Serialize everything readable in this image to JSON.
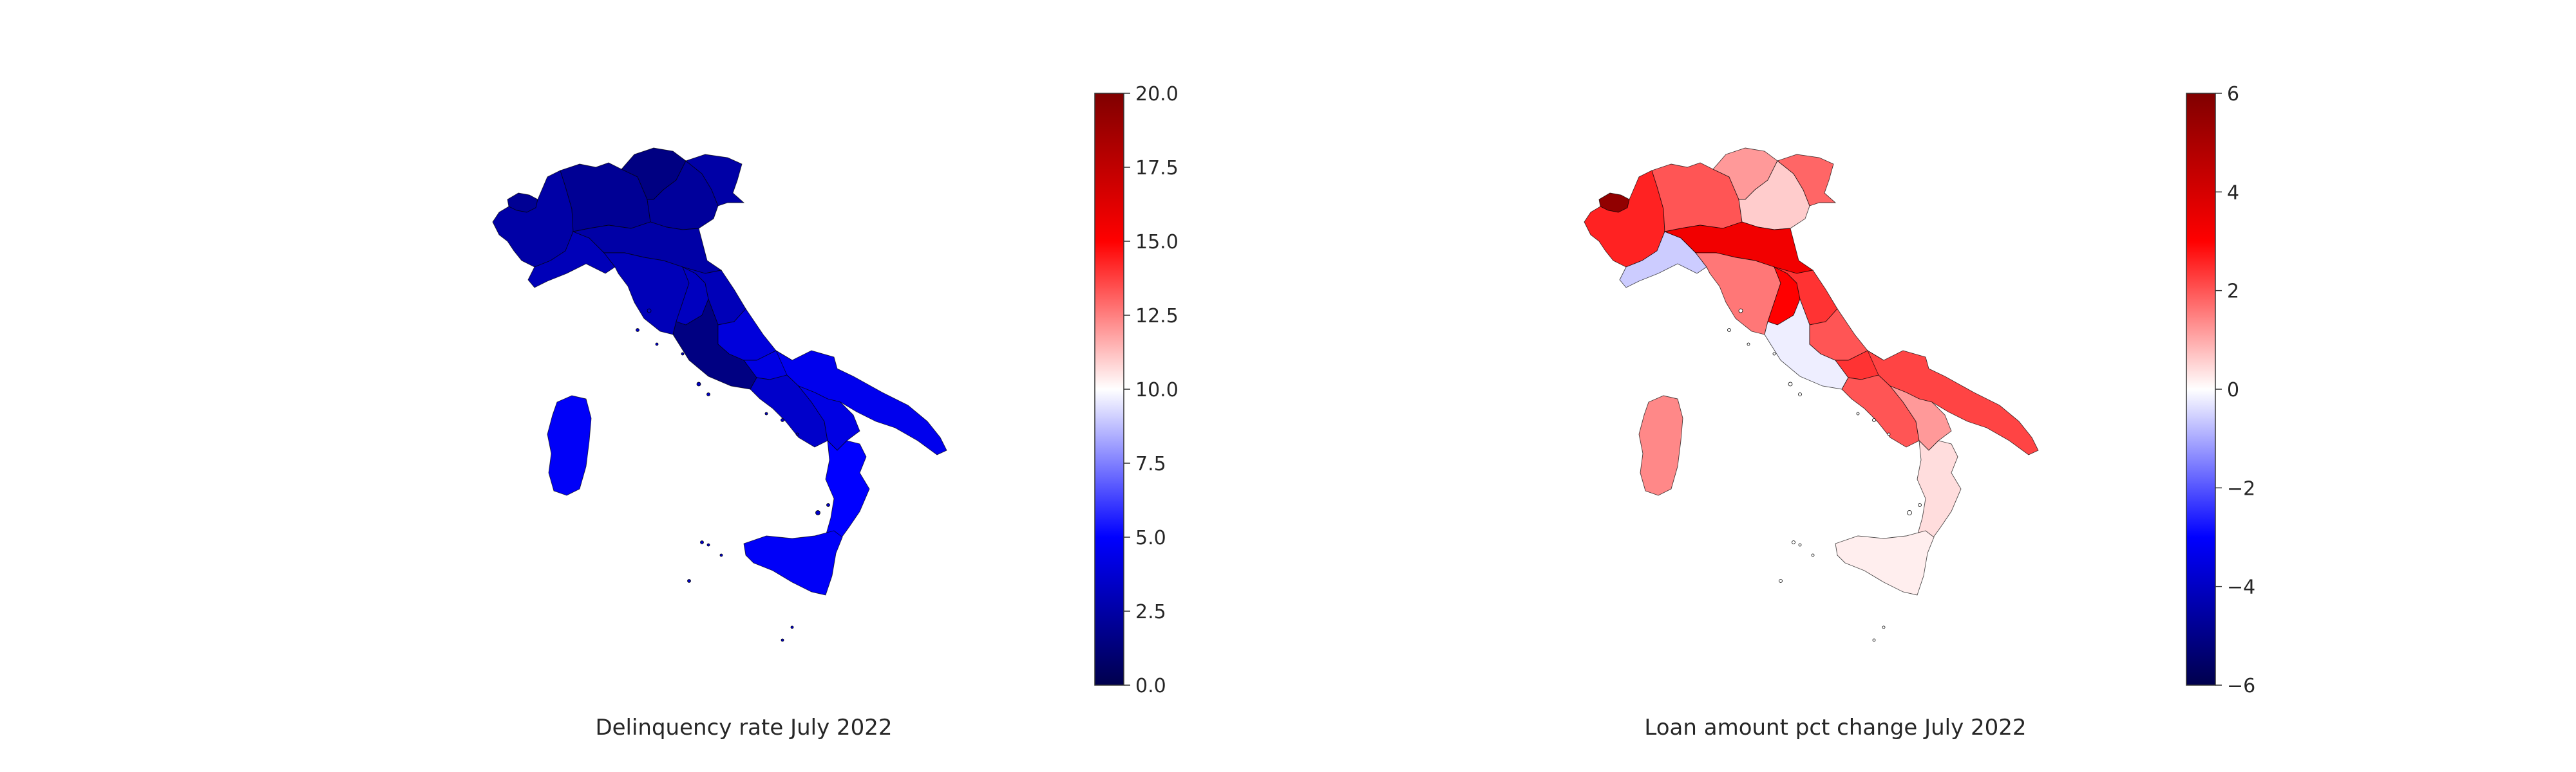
{
  "maps": [
    {
      "caption": "Delinquency rate July 2022",
      "colormap": "seismic",
      "colorbar": {
        "min": 0,
        "max": 20,
        "ticks": [
          "0.0",
          "2.5",
          "5.0",
          "7.5",
          "10.0",
          "12.5",
          "15.0",
          "17.5",
          "20.0"
        ]
      },
      "regions": [
        {
          "name": "valle-d-aosta",
          "value": 2.0
        },
        {
          "name": "piemonte",
          "value": 2.5
        },
        {
          "name": "liguria",
          "value": 3.0
        },
        {
          "name": "lombardia",
          "value": 2.0
        },
        {
          "name": "trentino-alto-adige",
          "value": 1.5
        },
        {
          "name": "veneto",
          "value": 2.2
        },
        {
          "name": "friuli-venezia-giulia",
          "value": 2.5
        },
        {
          "name": "emilia-romagna",
          "value": 2.5
        },
        {
          "name": "toscana",
          "value": 3.0
        },
        {
          "name": "umbria",
          "value": 3.2
        },
        {
          "name": "marche",
          "value": 3.0
        },
        {
          "name": "lazio",
          "value": 1.5
        },
        {
          "name": "abruzzo",
          "value": 4.0
        },
        {
          "name": "molise",
          "value": 4.2
        },
        {
          "name": "campania",
          "value": 3.5
        },
        {
          "name": "puglia",
          "value": 4.5
        },
        {
          "name": "basilicata",
          "value": 4.2
        },
        {
          "name": "calabria",
          "value": 5.0
        },
        {
          "name": "sicilia",
          "value": 4.8
        },
        {
          "name": "sardegna",
          "value": 4.8
        }
      ]
    },
    {
      "caption": "Loan amount pct change July 2022",
      "colormap": "seismic",
      "colorbar": {
        "min": -6,
        "max": 6,
        "ticks": [
          "−6",
          "−4",
          "−2",
          "0",
          "2",
          "4",
          "6"
        ]
      },
      "regions": [
        {
          "name": "valle-d-aosta",
          "value": 5.6
        },
        {
          "name": "piemonte",
          "value": 2.6
        },
        {
          "name": "liguria",
          "value": -0.6
        },
        {
          "name": "lombardia",
          "value": 2.0
        },
        {
          "name": "trentino-alto-adige",
          "value": 1.2
        },
        {
          "name": "veneto",
          "value": 0.6
        },
        {
          "name": "friuli-venezia-giulia",
          "value": 1.8
        },
        {
          "name": "emilia-romagna",
          "value": 3.3
        },
        {
          "name": "toscana",
          "value": 1.6
        },
        {
          "name": "umbria",
          "value": 3.0
        },
        {
          "name": "marche",
          "value": 2.4
        },
        {
          "name": "lazio",
          "value": -0.2
        },
        {
          "name": "abruzzo",
          "value": 2.0
        },
        {
          "name": "molise",
          "value": 2.4
        },
        {
          "name": "campania",
          "value": 2.0
        },
        {
          "name": "puglia",
          "value": 2.2
        },
        {
          "name": "basilicata",
          "value": 1.2
        },
        {
          "name": "calabria",
          "value": 0.4
        },
        {
          "name": "sicilia",
          "value": 0.2
        },
        {
          "name": "sardegna",
          "value": 1.4
        }
      ]
    }
  ]
}
